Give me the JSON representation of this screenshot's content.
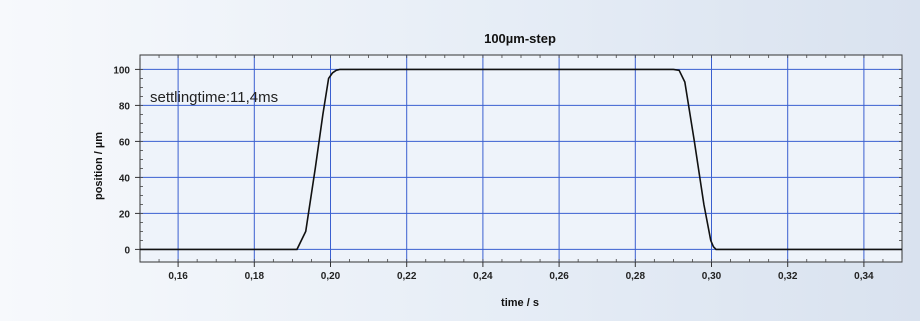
{
  "chart_data": {
    "type": "line",
    "title": "100µm-step",
    "xlabel": "time  / s",
    "ylabel": "position / µm",
    "xlim": [
      0.15,
      0.35
    ],
    "ylim": [
      -7,
      108
    ],
    "x_ticks": [
      "0,16",
      "0,18",
      "0,20",
      "0,22",
      "0,24",
      "0,26",
      "0,28",
      "0,30",
      "0,32",
      "0,34"
    ],
    "y_ticks": [
      "0",
      "20",
      "40",
      "60",
      "80",
      "100"
    ],
    "annotation": "settlingtime:11,4ms",
    "grid": true,
    "colors": {
      "grid": "#3a5fd0",
      "line": "#111111",
      "plot_bg": "#eef3fa"
    },
    "series": [
      {
        "name": "",
        "x": [
          0.15,
          0.1912,
          0.1935,
          0.196,
          0.198,
          0.1995,
          0.2005,
          0.2015,
          0.2025,
          0.29,
          0.2915,
          0.293,
          0.2955,
          0.298,
          0.2998,
          0.3005,
          0.3012,
          0.35
        ],
        "y": [
          0,
          0,
          10,
          45,
          75,
          95,
          98,
          99.5,
          100,
          100,
          99.5,
          93,
          60,
          25,
          5,
          1.5,
          0,
          0
        ]
      }
    ]
  }
}
